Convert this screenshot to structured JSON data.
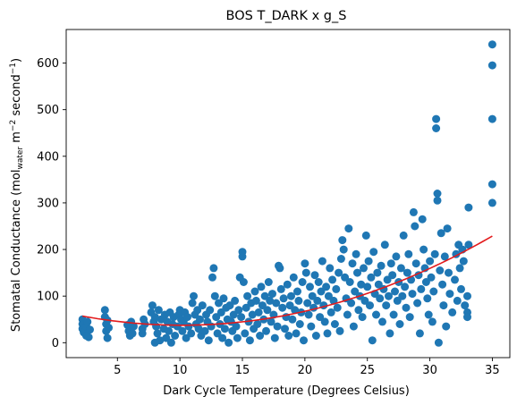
{
  "chart_data": {
    "type": "scatter",
    "title": "BOS T_DARK x g_S",
    "xlabel": "Dark Cycle Temperature (Degrees Celsius)",
    "ylabel": "Stomatal Conductance (mol",
    "ylabel_sub": "water",
    "ylabel_mid": " m",
    "ylabel_sup1": "−2",
    "ylabel_mid2": " second",
    "ylabel_sup2": "−1",
    "ylabel_end": ")",
    "xlim": [
      0.9,
      36.4
    ],
    "ylim": [
      -32,
      672
    ],
    "xticks": [
      5,
      10,
      15,
      20,
      25,
      30,
      35
    ],
    "yticks": [
      0,
      100,
      200,
      300,
      400,
      500,
      600
    ],
    "grid": false,
    "point_color": "#1f77b4",
    "fit_color": "#e31a1c",
    "fit": {
      "kind": "quadratic",
      "x_range": [
        2.2,
        35
      ],
      "coefficients": [
        69.5,
        -6.3,
        0.31
      ]
    },
    "points": [
      [
        2.2,
        50
      ],
      [
        2.2,
        40
      ],
      [
        2.2,
        30
      ],
      [
        2.3,
        22
      ],
      [
        2.4,
        25
      ],
      [
        2.5,
        15
      ],
      [
        2.5,
        35
      ],
      [
        2.6,
        45
      ],
      [
        2.7,
        12
      ],
      [
        2.8,
        28
      ],
      [
        4.0,
        70
      ],
      [
        4.0,
        55
      ],
      [
        4.1,
        40
      ],
      [
        4.1,
        25
      ],
      [
        4.2,
        10
      ],
      [
        4.2,
        48
      ],
      [
        4.3,
        32
      ],
      [
        5.8,
        38
      ],
      [
        5.9,
        25
      ],
      [
        6.0,
        15
      ],
      [
        6.0,
        30
      ],
      [
        6.1,
        45
      ],
      [
        6.2,
        20
      ],
      [
        6.3,
        35
      ],
      [
        7.0,
        20
      ],
      [
        7.0,
        30
      ],
      [
        7.1,
        50
      ],
      [
        7.2,
        40
      ],
      [
        7.7,
        65
      ],
      [
        7.8,
        80
      ],
      [
        7.9,
        45
      ],
      [
        8.0,
        55
      ],
      [
        8.0,
        0
      ],
      [
        8.1,
        35
      ],
      [
        8.2,
        20
      ],
      [
        8.3,
        70
      ],
      [
        8.4,
        5
      ],
      [
        8.5,
        50
      ],
      [
        8.7,
        30
      ],
      [
        8.8,
        60
      ],
      [
        8.9,
        10
      ],
      [
        9.0,
        45
      ],
      [
        9.1,
        25
      ],
      [
        9.2,
        65
      ],
      [
        9.3,
        0
      ],
      [
        9.4,
        40
      ],
      [
        9.5,
        55
      ],
      [
        9.6,
        15
      ],
      [
        9.8,
        35
      ],
      [
        9.9,
        60
      ],
      [
        10.0,
        70
      ],
      [
        10.1,
        50
      ],
      [
        10.2,
        25
      ],
      [
        10.3,
        45
      ],
      [
        10.4,
        65
      ],
      [
        10.5,
        10
      ],
      [
        10.6,
        55
      ],
      [
        10.7,
        35
      ],
      [
        10.9,
        20
      ],
      [
        11.0,
        85
      ],
      [
        11.1,
        100
      ],
      [
        11.2,
        60
      ],
      [
        11.3,
        40
      ],
      [
        11.4,
        70
      ],
      [
        11.5,
        30
      ],
      [
        11.6,
        50
      ],
      [
        11.7,
        15
      ],
      [
        11.8,
        80
      ],
      [
        12.0,
        25
      ],
      [
        12.1,
        60
      ],
      [
        12.2,
        45
      ],
      [
        12.3,
        5
      ],
      [
        12.4,
        70
      ],
      [
        12.5,
        35
      ],
      [
        12.6,
        140
      ],
      [
        12.7,
        160
      ],
      [
        12.8,
        100
      ],
      [
        12.9,
        55
      ],
      [
        13.0,
        20
      ],
      [
        13.1,
        85
      ],
      [
        13.2,
        40
      ],
      [
        13.3,
        65
      ],
      [
        13.4,
        10
      ],
      [
        13.5,
        95
      ],
      [
        13.6,
        30
      ],
      [
        13.7,
        75
      ],
      [
        13.8,
        50
      ],
      [
        13.9,
        0
      ],
      [
        14.0,
        80
      ],
      [
        14.1,
        45
      ],
      [
        14.2,
        25
      ],
      [
        14.3,
        60
      ],
      [
        14.4,
        90
      ],
      [
        14.5,
        35
      ],
      [
        14.6,
        10
      ],
      [
        14.7,
        70
      ],
      [
        14.8,
        140
      ],
      [
        14.9,
        55
      ],
      [
        15.0,
        195
      ],
      [
        15.0,
        185
      ],
      [
        15.1,
        130
      ],
      [
        15.2,
        20
      ],
      [
        15.3,
        75
      ],
      [
        15.4,
        100
      ],
      [
        15.5,
        45
      ],
      [
        15.6,
        5
      ],
      [
        15.7,
        85
      ],
      [
        15.8,
        60
      ],
      [
        15.9,
        30
      ],
      [
        16.0,
        110
      ],
      [
        16.1,
        90
      ],
      [
        16.2,
        40
      ],
      [
        16.3,
        65
      ],
      [
        16.4,
        15
      ],
      [
        16.5,
        120
      ],
      [
        16.6,
        80
      ],
      [
        16.7,
        50
      ],
      [
        16.8,
        100
      ],
      [
        16.9,
        25
      ],
      [
        17.0,
        70
      ],
      [
        17.1,
        130
      ],
      [
        17.2,
        90
      ],
      [
        17.3,
        45
      ],
      [
        17.4,
        105
      ],
      [
        17.5,
        60
      ],
      [
        17.6,
        10
      ],
      [
        17.7,
        85
      ],
      [
        17.8,
        35
      ],
      [
        17.9,
        165
      ],
      [
        18.0,
        160
      ],
      [
        18.1,
        115
      ],
      [
        18.2,
        75
      ],
      [
        18.3,
        95
      ],
      [
        18.4,
        30
      ],
      [
        18.5,
        55
      ],
      [
        18.6,
        125
      ],
      [
        18.7,
        15
      ],
      [
        18.8,
        80
      ],
      [
        18.9,
        100
      ],
      [
        19.0,
        50
      ],
      [
        19.1,
        140
      ],
      [
        19.2,
        70
      ],
      [
        19.3,
        20
      ],
      [
        19.4,
        110
      ],
      [
        19.5,
        90
      ],
      [
        19.6,
        40
      ],
      [
        19.7,
        65
      ],
      [
        19.8,
        130
      ],
      [
        19.9,
        5
      ],
      [
        20.0,
        170
      ],
      [
        20.1,
        150
      ],
      [
        20.2,
        85
      ],
      [
        20.3,
        60
      ],
      [
        20.4,
        120
      ],
      [
        20.5,
        35
      ],
      [
        20.6,
        100
      ],
      [
        20.7,
        75
      ],
      [
        20.8,
        145
      ],
      [
        20.9,
        15
      ],
      [
        21.0,
        90
      ],
      [
        21.1,
        130
      ],
      [
        21.2,
        55
      ],
      [
        21.3,
        110
      ],
      [
        21.4,
        175
      ],
      [
        21.5,
        80
      ],
      [
        21.6,
        45
      ],
      [
        21.7,
        120
      ],
      [
        21.8,
        20
      ],
      [
        21.9,
        100
      ],
      [
        22.0,
        160
      ],
      [
        22.1,
        65
      ],
      [
        22.2,
        135
      ],
      [
        22.3,
        90
      ],
      [
        22.4,
        40
      ],
      [
        22.5,
        115
      ],
      [
        22.6,
        75
      ],
      [
        22.7,
        150
      ],
      [
        22.8,
        25
      ],
      [
        22.9,
        180
      ],
      [
        23.0,
        220
      ],
      [
        23.1,
        200
      ],
      [
        23.2,
        140
      ],
      [
        23.3,
        95
      ],
      [
        23.4,
        60
      ],
      [
        23.5,
        245
      ],
      [
        23.6,
        130
      ],
      [
        23.7,
        85
      ],
      [
        23.8,
        170
      ],
      [
        23.9,
        35
      ],
      [
        24.0,
        110
      ],
      [
        24.1,
        190
      ],
      [
        24.2,
        150
      ],
      [
        24.3,
        70
      ],
      [
        24.4,
        100
      ],
      [
        24.5,
        125
      ],
      [
        24.6,
        55
      ],
      [
        24.7,
        160
      ],
      [
        24.8,
        90
      ],
      [
        24.9,
        230
      ],
      [
        25.0,
        120
      ],
      [
        25.1,
        175
      ],
      [
        25.2,
        80
      ],
      [
        25.3,
        140
      ],
      [
        25.4,
        5
      ],
      [
        25.5,
        195
      ],
      [
        25.6,
        105
      ],
      [
        25.7,
        60
      ],
      [
        25.8,
        150
      ],
      [
        25.9,
        125
      ],
      [
        26.0,
        95
      ],
      [
        26.1,
        165
      ],
      [
        26.2,
        45
      ],
      [
        26.3,
        115
      ],
      [
        26.4,
        210
      ],
      [
        26.5,
        80
      ],
      [
        26.6,
        135
      ],
      [
        26.7,
        100
      ],
      [
        26.8,
        20
      ],
      [
        26.9,
        170
      ],
      [
        27.0,
        145
      ],
      [
        27.1,
        60
      ],
      [
        27.2,
        110
      ],
      [
        27.3,
        185
      ],
      [
        27.4,
        90
      ],
      [
        27.5,
        130
      ],
      [
        27.6,
        40
      ],
      [
        27.7,
        160
      ],
      [
        27.8,
        100
      ],
      [
        27.9,
        230
      ],
      [
        28.0,
        120
      ],
      [
        28.1,
        75
      ],
      [
        28.2,
        150
      ],
      [
        28.3,
        190
      ],
      [
        28.4,
        55
      ],
      [
        28.5,
        135
      ],
      [
        28.6,
        105
      ],
      [
        28.7,
        280
      ],
      [
        28.8,
        250
      ],
      [
        28.9,
        170
      ],
      [
        29.0,
        85
      ],
      [
        29.1,
        145
      ],
      [
        29.2,
        20
      ],
      [
        29.3,
        115
      ],
      [
        29.4,
        265
      ],
      [
        29.5,
        200
      ],
      [
        29.6,
        160
      ],
      [
        29.7,
        130
      ],
      [
        29.8,
        95
      ],
      [
        29.9,
        60
      ],
      [
        30.0,
        175
      ],
      [
        30.1,
        140
      ],
      [
        30.2,
        45
      ],
      [
        30.3,
        110
      ],
      [
        30.4,
        190
      ],
      [
        30.5,
        480
      ],
      [
        30.5,
        460
      ],
      [
        30.6,
        320
      ],
      [
        30.6,
        305
      ],
      [
        30.7,
        0
      ],
      [
        30.8,
        155
      ],
      [
        30.9,
        235
      ],
      [
        31.0,
        125
      ],
      [
        31.1,
        80
      ],
      [
        31.2,
        185
      ],
      [
        31.3,
        35
      ],
      [
        31.4,
        245
      ],
      [
        31.5,
        150
      ],
      [
        31.6,
        105
      ],
      [
        31.8,
        65
      ],
      [
        32.0,
        135
      ],
      [
        32.1,
        190
      ],
      [
        32.2,
        90
      ],
      [
        32.3,
        210
      ],
      [
        32.4,
        160
      ],
      [
        32.5,
        115
      ],
      [
        32.6,
        200
      ],
      [
        32.7,
        175
      ],
      [
        32.8,
        80
      ],
      [
        33.0,
        65
      ],
      [
        33.0,
        55
      ],
      [
        33.0,
        100
      ],
      [
        33.1,
        290
      ],
      [
        33.1,
        210
      ],
      [
        35.0,
        640
      ],
      [
        35.0,
        595
      ],
      [
        35.0,
        480
      ],
      [
        35.0,
        340
      ],
      [
        35.0,
        300
      ]
    ]
  }
}
